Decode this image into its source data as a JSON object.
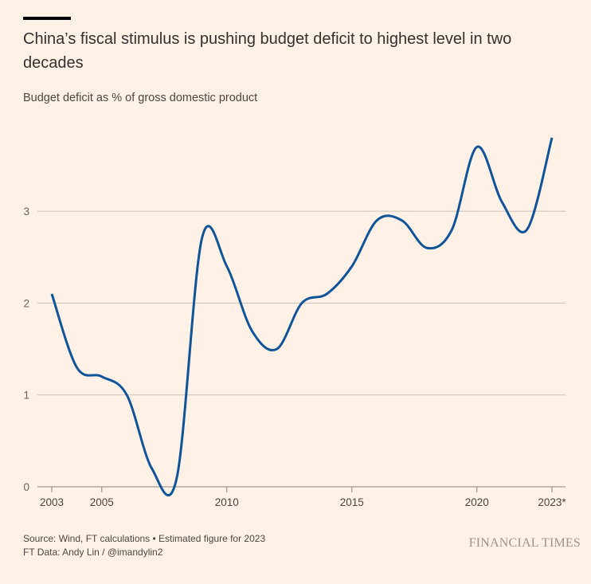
{
  "header": {
    "title": "China’s fiscal stimulus is pushing budget deficit to highest level in two decades",
    "subtitle": "Budget deficit as % of gross domestic product"
  },
  "footer": {
    "source": "Source: Wind, FT calculations • Estimated figure for 2023",
    "credit": "FT Data: Andy Lin / @imandylin2",
    "brand": "FINANCIAL TIMES"
  },
  "colors": {
    "background": "#fff1e5",
    "line": "#0f5499",
    "grid": "#ccc1b7",
    "axis": "#8f857d",
    "text": "#33302e"
  },
  "chart_data": {
    "type": "line",
    "title": "China’s fiscal stimulus is pushing budget deficit to highest level in two decades",
    "subtitle": "Budget deficit as % of gross domestic product",
    "xlabel": "",
    "ylabel": "",
    "x": [
      2003,
      2004,
      2005,
      2006,
      2007,
      2008,
      2009,
      2010,
      2011,
      2012,
      2013,
      2014,
      2015,
      2016,
      2017,
      2018,
      2019,
      2020,
      2021,
      2022,
      2023
    ],
    "series": [
      {
        "name": "Budget deficit (% of GDP)",
        "values": [
          2.1,
          1.3,
          1.2,
          1.0,
          0.2,
          0.1,
          2.7,
          2.4,
          1.7,
          1.5,
          2.0,
          2.1,
          2.4,
          2.9,
          2.9,
          2.6,
          2.8,
          3.7,
          3.1,
          2.8,
          3.8
        ]
      }
    ],
    "xticks": [
      {
        "value": 2003,
        "label": "2003"
      },
      {
        "value": 2005,
        "label": "2005"
      },
      {
        "value": 2010,
        "label": "2010"
      },
      {
        "value": 2015,
        "label": "2015"
      },
      {
        "value": 2020,
        "label": "2020"
      },
      {
        "value": 2023,
        "label": "2023*"
      }
    ],
    "yticks": [
      {
        "value": 0,
        "label": "0"
      },
      {
        "value": 1,
        "label": "1"
      },
      {
        "value": 2,
        "label": "2"
      },
      {
        "value": 3,
        "label": "3"
      }
    ],
    "xlim": [
      2003,
      2023
    ],
    "ylim": [
      0,
      4
    ],
    "grid": true,
    "legend": "none",
    "annotations": [
      "* Estimated figure for 2023"
    ]
  }
}
